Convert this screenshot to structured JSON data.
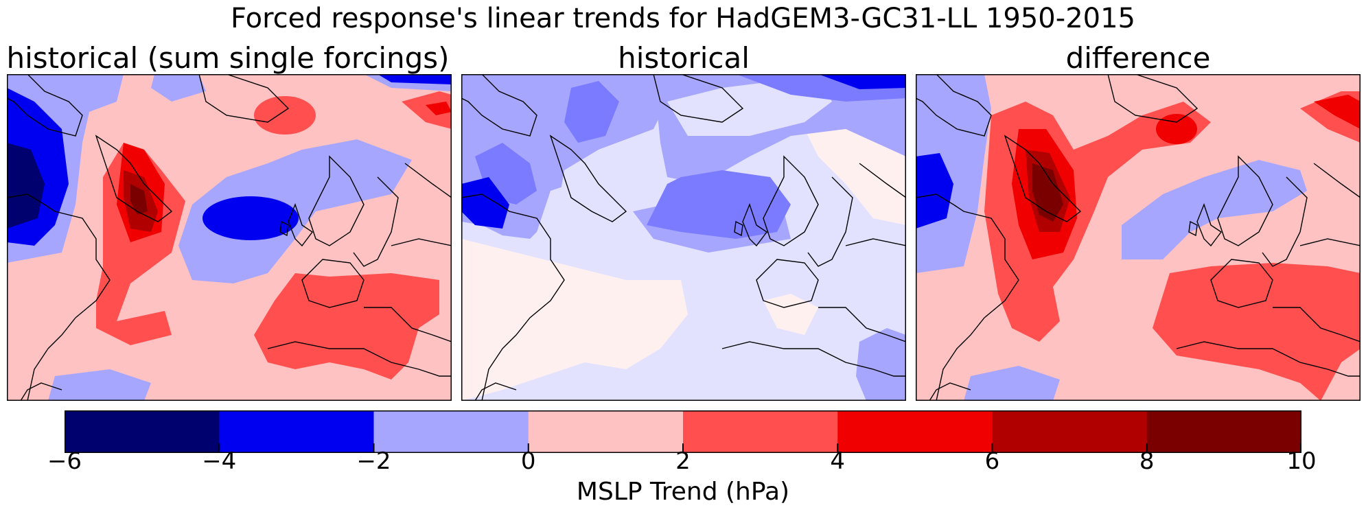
{
  "suptitle": "Forced response's linear trends for HadGEM3-GC31-LL 1950-2015",
  "panels": [
    {
      "title": "historical (sum single forcings)"
    },
    {
      "title": "historical"
    },
    {
      "title": "difference"
    }
  ],
  "colorbar": {
    "label": "MSLP Trend (hPa)",
    "ticks": [
      "−6",
      "−4",
      "−2",
      "0",
      "2",
      "4",
      "6",
      "8",
      "10"
    ],
    "levels": [
      -6,
      -4,
      -2,
      0,
      2,
      4,
      6,
      8,
      10
    ],
    "colors": [
      "#00006e",
      "#0000f0",
      "#a6a6ff",
      "#ffc2c2",
      "#ff4f4f",
      "#f00000",
      "#b00000",
      "#7a0000"
    ]
  }
}
